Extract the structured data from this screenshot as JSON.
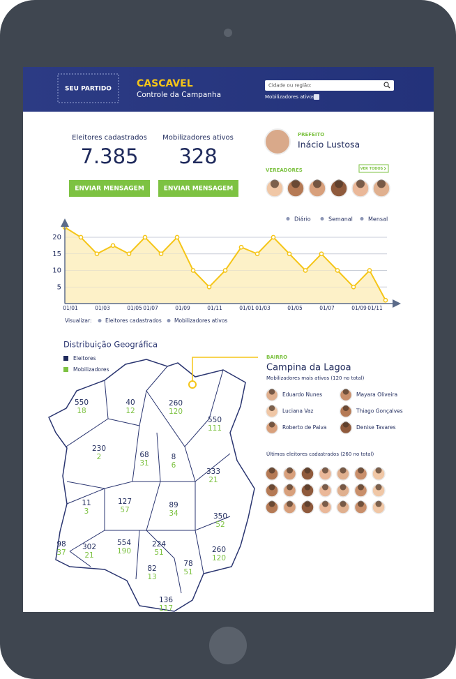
{
  "header": {
    "badge": "SEU PARTIDO",
    "city": "CASCAVEL",
    "subtitle": "Controle da Campanha",
    "search_placeholder": "Cidade ou região:",
    "filter": "Mobilizadores ativos"
  },
  "stats": [
    {
      "label": "Eleitores cadastrados",
      "value": "7.385",
      "button": "ENVIAR MENSAGEM"
    },
    {
      "label": "Mobilizadores ativos",
      "value": "328",
      "button": "ENVIAR MENSAGEM"
    }
  ],
  "mayor": {
    "role": "PREFEITO",
    "name": "Inácio Lustosa"
  },
  "councillors": {
    "title": "VEREADORES",
    "link": "VER TODOS"
  },
  "chart_data": {
    "type": "line",
    "categories": [
      "01/01",
      null,
      "01/03",
      null,
      "01/05",
      "01/07",
      null,
      "01/09",
      null,
      "01/11",
      null,
      "01/01",
      "01/03",
      null,
      "01/05",
      null,
      "01/07",
      null,
      "01/09",
      "01/11",
      null
    ],
    "values": [
      23,
      20,
      15,
      17.5,
      15,
      20,
      15,
      20,
      10,
      5,
      10,
      17,
      15,
      20,
      15,
      10,
      15,
      10,
      5,
      10,
      1
    ],
    "color": "#f5c518",
    "ylim": [
      0,
      24
    ],
    "yticks": [
      5,
      10,
      15,
      20
    ],
    "grid": true,
    "periods": [
      "Diário",
      "Semanal",
      "Mensal"
    ],
    "view_label": "Visualizar:",
    "views": [
      "Eleitores cadastrados",
      "Mobilizadores ativos"
    ]
  },
  "map": {
    "title": "Distribuição Geográfica",
    "legend": [
      "Eleitores",
      "Mobilizadores"
    ],
    "regions": [
      {
        "eleitores": 550,
        "mobilizadores": 18
      },
      {
        "eleitores": 40,
        "mobilizadores": 12
      },
      {
        "eleitores": 260,
        "mobilizadores": 120
      },
      {
        "eleitores": 550,
        "mobilizadores": 111
      },
      {
        "eleitores": 230,
        "mobilizadores": 2
      },
      {
        "eleitores": 68,
        "mobilizadores": 31
      },
      {
        "eleitores": 8,
        "mobilizadores": 6
      },
      {
        "eleitores": 333,
        "mobilizadores": 21
      },
      {
        "eleitores": 11,
        "mobilizadores": 3
      },
      {
        "eleitores": 127,
        "mobilizadores": 57
      },
      {
        "eleitores": 89,
        "mobilizadores": 34
      },
      {
        "eleitores": 350,
        "mobilizadores": 52
      },
      {
        "eleitores": 98,
        "mobilizadores": 37
      },
      {
        "eleitores": 302,
        "mobilizadores": 21
      },
      {
        "eleitores": 554,
        "mobilizadores": 190
      },
      {
        "eleitores": 224,
        "mobilizadores": 51
      },
      {
        "eleitores": 260,
        "mobilizadores": 120
      },
      {
        "eleitores": 82,
        "mobilizadores": 13
      },
      {
        "eleitores": 78,
        "mobilizadores": 51
      },
      {
        "eleitores": 136,
        "mobilizadores": 117
      }
    ]
  },
  "neighborhood": {
    "label": "BAIRRO",
    "name": "Campina da Lagoa",
    "top_title": "Mobilizadores mais ativos (120 no total)",
    "top": [
      "Eduardo Nunes",
      "Mayara Oliveira",
      "Luciana Vaz",
      "Thiago Gonçalves",
      "Roberto de Paiva",
      "Denise Tavares"
    ],
    "recent_title": "Últimos eleitores cadastrados (260 no total)"
  }
}
